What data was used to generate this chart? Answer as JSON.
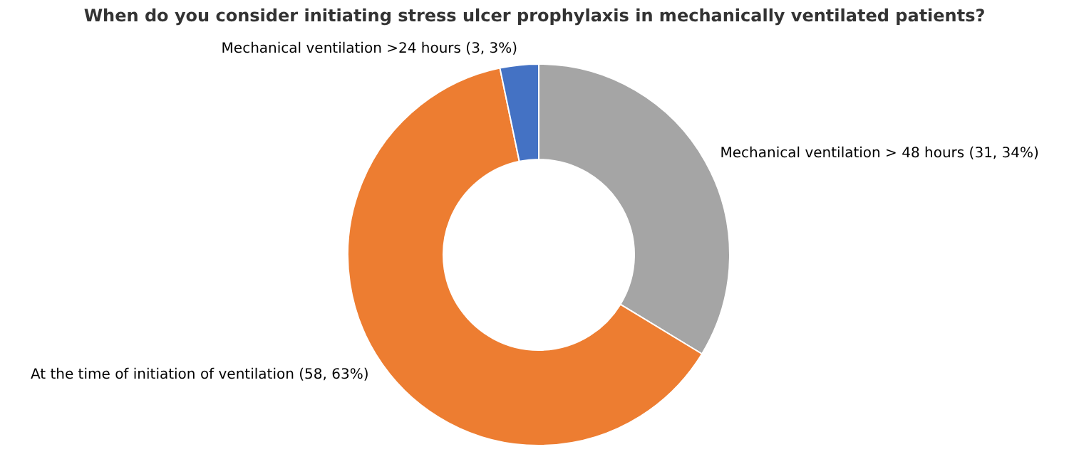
{
  "chart_data": {
    "type": "donut",
    "title": "When do you consider initiating stress ulcer prophylaxis in mechanically ventilated patients?",
    "categories": [
      "Mechanical ventilation > 48 hours (31, 34%)",
      "At the time of initiation of ventilation (58, 63%)",
      "Mechanical ventilation >24 hours (3, 3%)"
    ],
    "values": [
      31,
      58,
      3
    ],
    "colors": [
      "#a5a5a5",
      "#ed7d31",
      "#4472c4"
    ]
  }
}
